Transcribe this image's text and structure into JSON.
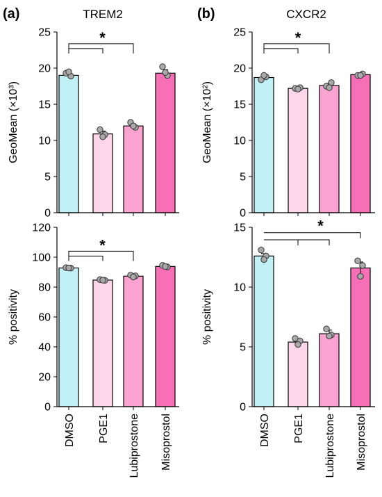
{
  "panel_labels": [
    "(a)",
    "(b)"
  ],
  "categories": [
    "DMSO",
    "PGE1",
    "Lubiprostone",
    "Misoprostol"
  ],
  "colors": {
    "DMSO": "#c1f1f7",
    "PGE1": "#fdd6ea",
    "Lubiprostone": "#fba4d2",
    "Misoprostol": "#f76fb7",
    "points": "#a9a9a9",
    "axis": "#000000"
  },
  "chart_data": [
    {
      "type": "bar",
      "panel": "(a)",
      "title": "TREM2",
      "ylabel": "GeoMean (×10³)",
      "ylim": [
        0,
        25
      ],
      "yticks": [
        0,
        5,
        10,
        15,
        20,
        25
      ],
      "categories": [
        "DMSO",
        "PGE1",
        "Lubiprostone",
        "Misoprostol"
      ],
      "values": [
        19.0,
        10.9,
        12.0,
        19.3
      ],
      "error": [
        0.3,
        0.4,
        0.3,
        0.5
      ],
      "points": [
        [
          19.3,
          18.9,
          19.5
        ],
        [
          11.5,
          10.8,
          10.5
        ],
        [
          12.5,
          11.8,
          12.0
        ],
        [
          20.2,
          19.0,
          19.4
        ]
      ],
      "significance": {
        "from": 0,
        "to": [
          1,
          2
        ],
        "label": "*"
      }
    },
    {
      "type": "bar",
      "panel": "(b)",
      "title": "CXCR2",
      "ylabel": "GeoMean (×10²)",
      "ylim": [
        0,
        25
      ],
      "yticks": [
        0,
        5,
        10,
        15,
        20,
        25
      ],
      "categories": [
        "DMSO",
        "PGE1",
        "Lubiprostone",
        "Misoprostol"
      ],
      "values": [
        18.7,
        17.2,
        17.6,
        19.1
      ],
      "error": [
        0.3,
        0.1,
        0.3,
        0.2
      ],
      "points": [
        [
          18.4,
          18.8,
          19.0
        ],
        [
          17.2,
          17.3,
          17.1
        ],
        [
          17.5,
          18.0,
          17.3
        ],
        [
          19.0,
          19.2,
          19.0
        ]
      ],
      "significance": {
        "from": 0,
        "to": [
          1,
          2
        ],
        "label": "*"
      }
    },
    {
      "type": "bar",
      "panel": "(a)",
      "title": "",
      "ylabel": "% positivity",
      "ylim": [
        0,
        120
      ],
      "yticks": [
        0,
        20,
        40,
        60,
        80,
        100,
        120
      ],
      "categories": [
        "DMSO",
        "PGE1",
        "Lubiprostone",
        "Misoprostol"
      ],
      "values": [
        92.8,
        84.7,
        87.3,
        93.8
      ],
      "error": [
        0.4,
        0.6,
        0.6,
        0.4
      ],
      "points": [
        [
          93.0,
          92.7,
          92.8
        ],
        [
          85.0,
          84.5,
          84.6
        ],
        [
          88.0,
          87.5,
          86.8
        ],
        [
          94.5,
          93.5,
          93.8
        ]
      ],
      "significance": {
        "from": 0,
        "to": [
          1,
          2
        ],
        "label": "*"
      }
    },
    {
      "type": "bar",
      "panel": "(b)",
      "title": "",
      "ylabel": "% positivity",
      "ylim": [
        0,
        15
      ],
      "yticks": [
        0,
        5,
        10,
        15
      ],
      "categories": [
        "DMSO",
        "PGE1",
        "Lubiprostone",
        "Misoprostol"
      ],
      "values": [
        12.6,
        5.4,
        6.1,
        11.6
      ],
      "error": [
        0.2,
        0.2,
        0.3,
        0.5
      ],
      "points": [
        [
          13.1,
          12.6,
          12.3
        ],
        [
          5.7,
          5.5,
          5.2
        ],
        [
          6.5,
          6.0,
          5.9
        ],
        [
          12.2,
          11.8,
          10.9
        ]
      ],
      "significance": {
        "from": 0,
        "to": [
          1,
          2,
          3
        ],
        "label": "*"
      }
    }
  ]
}
